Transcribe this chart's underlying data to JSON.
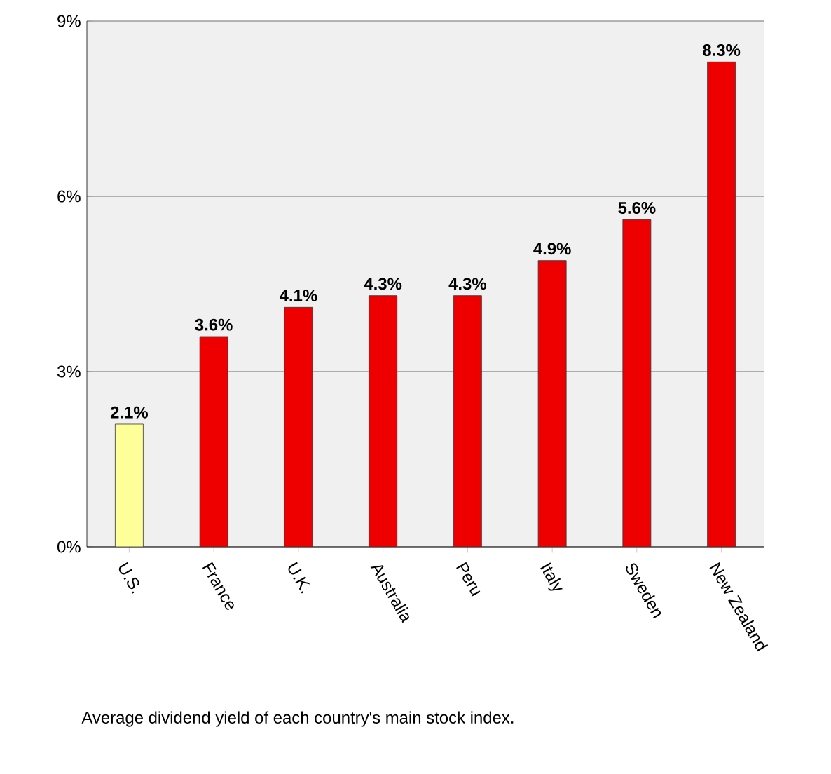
{
  "chart_data": {
    "type": "bar",
    "categories": [
      "U.S.",
      "France",
      "U.K.",
      "Australia",
      "Peru",
      "Italy",
      "Sweden",
      "New Zealand"
    ],
    "values": [
      2.1,
      3.6,
      4.1,
      4.3,
      4.3,
      4.9,
      5.6,
      8.3
    ],
    "value_labels": [
      "2.1%",
      "3.6%",
      "4.1%",
      "4.3%",
      "4.3%",
      "4.9%",
      "5.6%",
      "8.3%"
    ],
    "colors": [
      "#ffff99",
      "#ee0000",
      "#ee0000",
      "#ee0000",
      "#ee0000",
      "#ee0000",
      "#ee0000",
      "#ee0000"
    ],
    "ylim": [
      0,
      9
    ],
    "yticks": [
      {
        "value": 0,
        "label": "0%"
      },
      {
        "value": 3,
        "label": "3%"
      },
      {
        "value": 6,
        "label": "6%"
      },
      {
        "value": 9,
        "label": "9%"
      }
    ],
    "grid": "y",
    "annotations": [
      "Average dividend yield of each country's main stock index."
    ]
  }
}
